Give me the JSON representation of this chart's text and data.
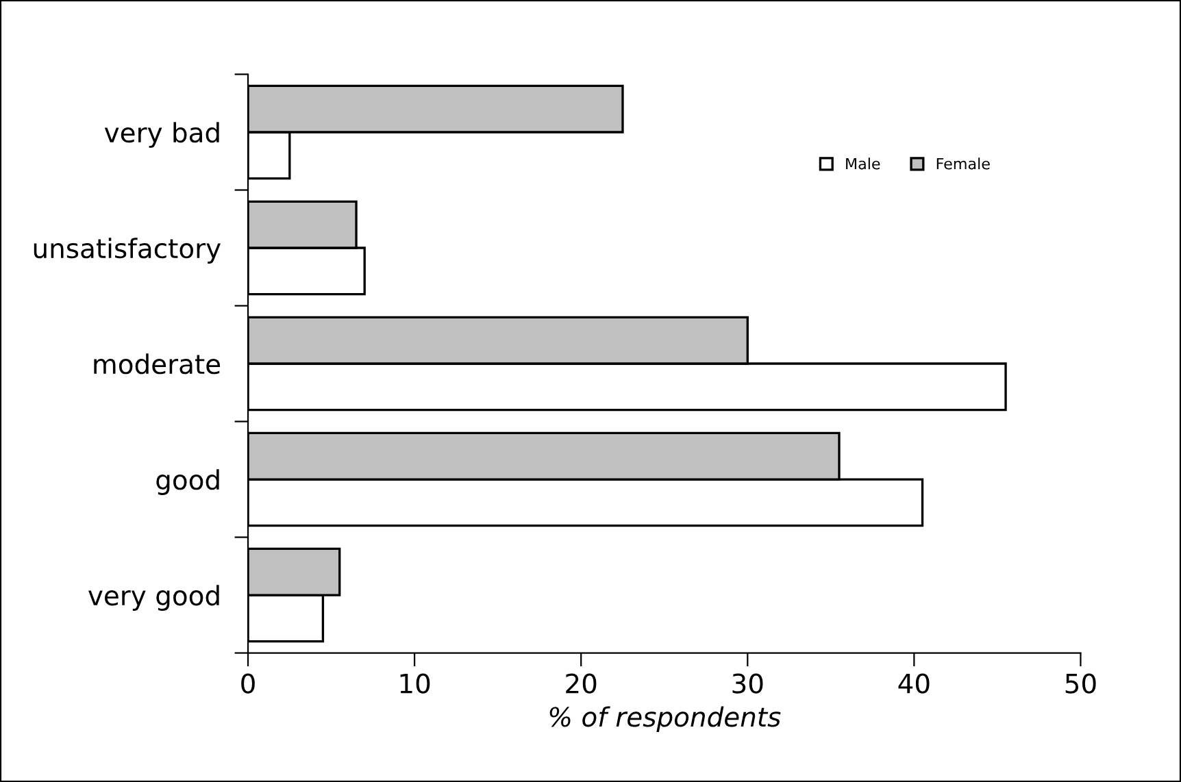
{
  "chart_data": {
    "type": "bar",
    "orientation": "horizontal",
    "xlabel": "% of respondents",
    "categories": [
      "very bad",
      "unsatisfactory",
      "moderate",
      "good",
      "very good"
    ],
    "series": [
      {
        "name": "Male",
        "color": "#ffffff",
        "values": [
          2.5,
          7,
          45.5,
          40.5,
          4.5
        ]
      },
      {
        "name": "Female",
        "color": "#c0c0c0",
        "values": [
          22.5,
          6.5,
          30,
          35.5,
          5.5
        ]
      }
    ],
    "xlim": [
      0,
      50
    ],
    "xticks": [
      0,
      10,
      20,
      30,
      40,
      50
    ],
    "grid": false,
    "legend": "top right"
  }
}
